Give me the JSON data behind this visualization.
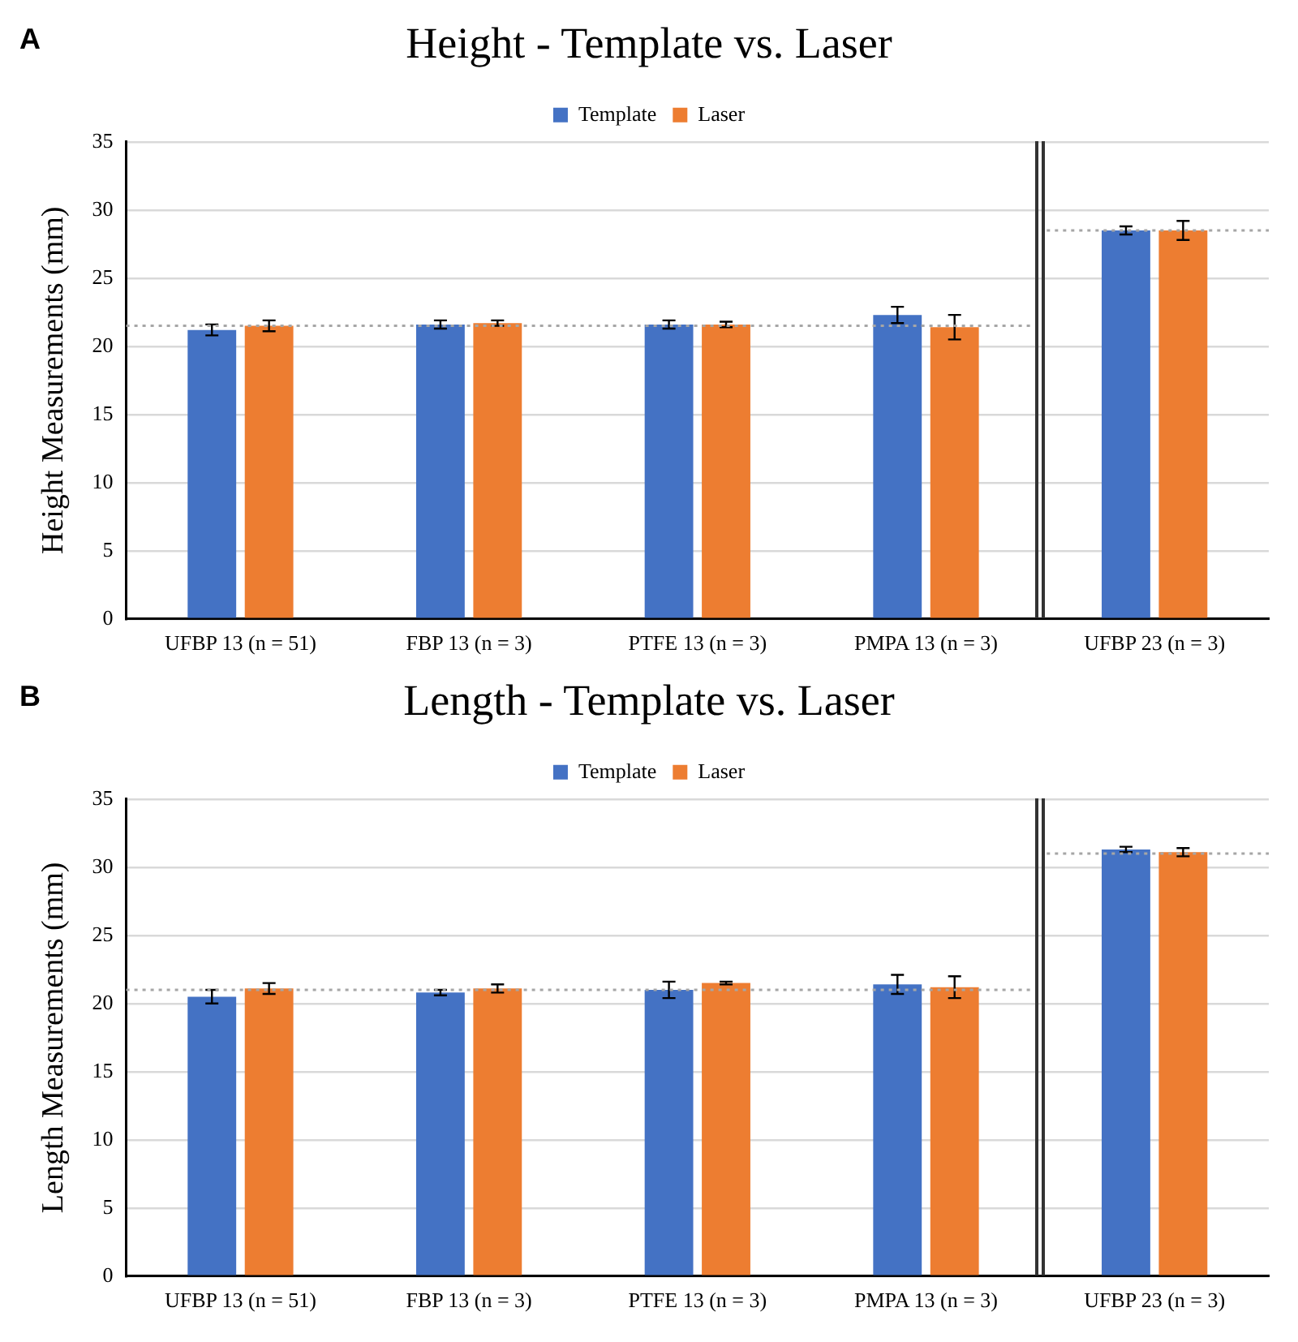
{
  "chart_data": [
    {
      "type": "bar",
      "title": "Height - Template vs. Laser",
      "ylabel": "Height Measurements (mm)",
      "annotations": [
        "A"
      ],
      "categories": [
        "UFBP 13 (n = 51)",
        "FBP 13 (n = 3)",
        "PTFE 13 (n = 3)",
        "PMPA 13 (n = 3)",
        "UFBP 23 (n = 3)"
      ],
      "series": [
        {
          "name": "Template",
          "color": "#4472c4",
          "values": [
            21.2,
            21.6,
            21.6,
            22.3,
            28.5
          ],
          "errors": [
            0.4,
            0.3,
            0.3,
            0.6,
            0.3
          ]
        },
        {
          "name": "Laser",
          "color": "#ed7d31",
          "values": [
            21.5,
            21.7,
            21.6,
            21.4,
            28.5
          ],
          "errors": [
            0.4,
            0.2,
            0.2,
            0.9,
            0.7
          ]
        }
      ],
      "ylim": [
        0,
        35
      ],
      "yticks": [
        0,
        5,
        10,
        15,
        20,
        25,
        30,
        35
      ],
      "grid": "y",
      "legend": "top",
      "ref_lines": [
        {
          "axis": "y",
          "value": 21.5,
          "color": "#a6a6a6",
          "line_style": "dotted"
        },
        {
          "axis": "y",
          "value": 28.5,
          "color": "#a6a6a6",
          "line_style": "dotted"
        }
      ]
    },
    {
      "type": "bar",
      "title": "Length - Template vs. Laser",
      "ylabel": "Length Measurements (mm)",
      "annotations": [
        "B"
      ],
      "categories": [
        "UFBP 13 (n = 51)",
        "FBP 13 (n = 3)",
        "PTFE 13 (n = 3)",
        "PMPA 13 (n = 3)",
        "UFBP 23 (n = 3)"
      ],
      "series": [
        {
          "name": "Template",
          "color": "#4472c4",
          "values": [
            20.5,
            20.8,
            21.0,
            21.4,
            31.3
          ],
          "errors": [
            0.5,
            0.2,
            0.6,
            0.7,
            0.2
          ]
        },
        {
          "name": "Laser",
          "color": "#ed7d31",
          "values": [
            21.1,
            21.1,
            21.5,
            21.2,
            31.1
          ],
          "errors": [
            0.4,
            0.3,
            0.1,
            0.8,
            0.3
          ]
        }
      ],
      "ylim": [
        0,
        35
      ],
      "yticks": [
        0,
        5,
        10,
        15,
        20,
        25,
        30,
        35
      ],
      "grid": "y",
      "legend": "top",
      "ref_lines": [
        {
          "axis": "y",
          "value": 21.0,
          "color": "#a6a6a6",
          "line_style": "dotted"
        },
        {
          "axis": "y",
          "value": 31.0,
          "color": "#a6a6a6",
          "line_style": "dotted"
        }
      ]
    }
  ]
}
